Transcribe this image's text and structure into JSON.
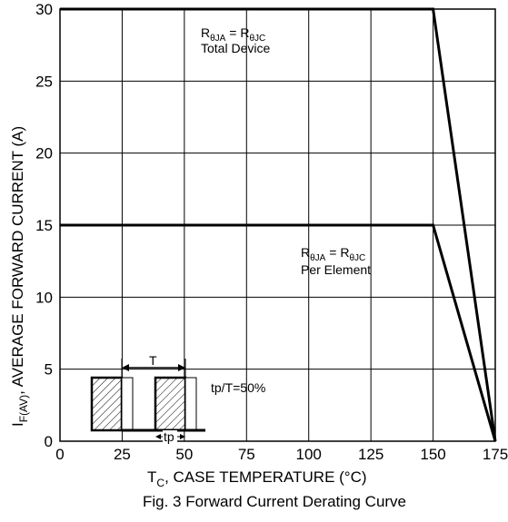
{
  "chart_data": {
    "type": "line",
    "title": "Fig. 3 Forward Current Derating Curve",
    "xlabel": {
      "main": "T",
      "sub": "C",
      "rest": ", CASE TEMPERATURE (°C)"
    },
    "ylabel": {
      "main": "I",
      "sub": "F(AV)",
      "rest": ", AVERAGE FORWARD CURRENT (A)"
    },
    "xlim": [
      0,
      175
    ],
    "ylim": [
      0,
      30
    ],
    "xticks": [
      "0",
      "25",
      "50",
      "75",
      "100",
      "125",
      "150",
      "175"
    ],
    "yticks": [
      "0",
      "5",
      "10",
      "15",
      "20",
      "25",
      "30"
    ],
    "grid": true,
    "series": [
      {
        "x": [
          0,
          150,
          175
        ],
        "y": [
          30,
          30,
          0
        ]
      },
      {
        "x": [
          0,
          150,
          175
        ],
        "y": [
          15,
          15,
          0
        ]
      }
    ],
    "annotations": {
      "total": {
        "lhs": "R",
        "lhs_sub": "θJA",
        "eq": " = ",
        "rhs": "R",
        "rhs_sub": "θJC",
        "line2": "Total Device"
      },
      "element": {
        "lhs": "R",
        "lhs_sub": "θJA",
        "eq": " = ",
        "rhs": "R",
        "rhs_sub": "θJC",
        "line2": "Per Element"
      },
      "period_label": "T",
      "pulse_label": "tp",
      "duty_label": "tp/T=50%"
    }
  }
}
